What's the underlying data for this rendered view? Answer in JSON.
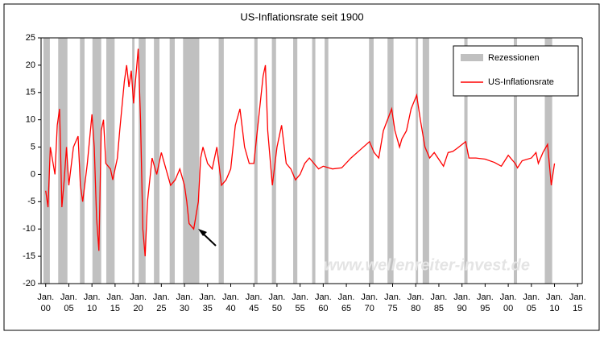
{
  "chart_data": {
    "type": "line",
    "title": "US-Inflationsrate seit 1900",
    "watermark": "www.wellenreiter-invest.de",
    "xlim": [
      1899,
      2016
    ],
    "ylim": [
      -20,
      25
    ],
    "yticks": [
      -20,
      -15,
      -10,
      -5,
      0,
      5,
      10,
      15,
      20,
      25
    ],
    "xticks": [
      {
        "value": 1900,
        "label": "Jan. 00"
      },
      {
        "value": 1905,
        "label": "Jan. 05"
      },
      {
        "value": 1910,
        "label": "Jan. 10"
      },
      {
        "value": 1915,
        "label": "Jan. 15"
      },
      {
        "value": 1920,
        "label": "Jan. 20"
      },
      {
        "value": 1925,
        "label": "Jan. 25"
      },
      {
        "value": 1930,
        "label": "Jan. 30"
      },
      {
        "value": 1935,
        "label": "Jan. 35"
      },
      {
        "value": 1940,
        "label": "Jan. 40"
      },
      {
        "value": 1945,
        "label": "Jan. 45"
      },
      {
        "value": 1950,
        "label": "Jan. 50"
      },
      {
        "value": 1955,
        "label": "Jan. 55"
      },
      {
        "value": 1960,
        "label": "Jan. 60"
      },
      {
        "value": 1965,
        "label": "Jan. 65"
      },
      {
        "value": 1970,
        "label": "Jan. 70"
      },
      {
        "value": 1975,
        "label": "Jan. 75"
      },
      {
        "value": 1980,
        "label": "Jan. 80"
      },
      {
        "value": 1985,
        "label": "Jan. 85"
      },
      {
        "value": 1990,
        "label": "Jan. 90"
      },
      {
        "value": 1995,
        "label": "Jan. 95"
      },
      {
        "value": 2000,
        "label": "Jan. 00"
      },
      {
        "value": 2005,
        "label": "Jan. 05"
      },
      {
        "value": 2010,
        "label": "Jan. 10"
      },
      {
        "value": 2015,
        "label": "Jan. 15"
      }
    ],
    "recession_name": "Rezessionen",
    "recession_color": "#c0c0c0",
    "recessions": [
      [
        1899.5,
        1900.9
      ],
      [
        1902.7,
        1904.7
      ],
      [
        1907.4,
        1908.4
      ],
      [
        1910.1,
        1912
      ],
      [
        1913.1,
        1914.9
      ],
      [
        1918.7,
        1919.2
      ],
      [
        1920.1,
        1921.6
      ],
      [
        1923.4,
        1924.6
      ],
      [
        1926.8,
        1927.9
      ],
      [
        1929.7,
        1933.2
      ],
      [
        1937.4,
        1938.5
      ],
      [
        1945.1,
        1945.8
      ],
      [
        1948.9,
        1949.8
      ],
      [
        1953.5,
        1954.4
      ],
      [
        1957.6,
        1958.3
      ],
      [
        1960.3,
        1961.1
      ],
      [
        1969.9,
        1970.9
      ],
      [
        1973.9,
        1975.2
      ],
      [
        1980,
        1980.5
      ],
      [
        1981.5,
        1982.9
      ],
      [
        1990.5,
        1991.2
      ],
      [
        2001.2,
        2001.9
      ],
      [
        2007.9,
        2009.5
      ]
    ],
    "series": [
      {
        "name": "US-Inflationsrate",
        "color": "#ff0000",
        "x": [
          1900,
          1900.5,
          1901,
          1902,
          1902.5,
          1903,
          1903.5,
          1904,
          1904.5,
          1905,
          1906,
          1907,
          1907.5,
          1908,
          1909,
          1910,
          1910.5,
          1911,
          1911.5,
          1912,
          1912.5,
          1913,
          1914,
          1914.5,
          1915,
          1915.5,
          1916,
          1917,
          1917.5,
          1918,
          1918.5,
          1919,
          1920,
          1920.5,
          1921,
          1921.5,
          1922,
          1922.5,
          1923,
          1924,
          1925,
          1926,
          1927,
          1928,
          1929,
          1930,
          1930.5,
          1931,
          1932,
          1933,
          1933.5,
          1934,
          1935,
          1936,
          1937,
          1938,
          1939,
          1940,
          1941,
          1942,
          1943,
          1944,
          1945,
          1946,
          1947,
          1947.5,
          1948,
          1949,
          1950,
          1951,
          1952,
          1953,
          1954,
          1955,
          1956,
          1957,
          1958,
          1959,
          1960,
          1962,
          1964,
          1966,
          1968,
          1970,
          1971,
          1972,
          1973,
          1974.8,
          1975.5,
          1976.5,
          1977,
          1978,
          1979,
          1980.2,
          1981,
          1982,
          1983,
          1984,
          1986,
          1987,
          1988,
          1989,
          1990.8,
          1991.5,
          1993,
          1995,
          1997,
          1998.5,
          2000,
          2001.5,
          2002,
          2003,
          2005,
          2006,
          2006.5,
          2007.5,
          2008.5,
          2009.3,
          2010
        ],
        "values": [
          -3,
          -6,
          5,
          0,
          9,
          12,
          -6,
          -1,
          5,
          -2,
          5,
          7,
          -2,
          -5,
          2,
          11,
          5,
          -8,
          -14,
          8,
          10,
          2,
          1,
          -1,
          1,
          3,
          8,
          17,
          20,
          16,
          19,
          13,
          23,
          10,
          -10,
          -15,
          -5,
          -1,
          3,
          0,
          4,
          1,
          -2,
          -1,
          1,
          -2,
          -5,
          -9,
          -10,
          -5,
          3,
          5,
          2,
          1,
          5,
          -2,
          -1,
          1,
          9,
          12,
          5,
          2,
          2,
          10,
          18,
          20,
          8,
          -2,
          5,
          9,
          2,
          1,
          -1,
          0,
          2,
          3,
          2,
          1,
          1.5,
          1,
          1.2,
          3,
          4.5,
          6,
          4,
          3,
          8,
          12,
          8,
          5,
          6.5,
          8,
          12,
          14.5,
          10,
          5,
          3,
          4,
          1.5,
          4,
          4.2,
          4.8,
          6,
          3,
          3,
          2.8,
          2.2,
          1.5,
          3.5,
          2,
          1.2,
          2.5,
          3,
          4,
          2,
          4,
          5.5,
          -2,
          2
        ]
      }
    ]
  }
}
